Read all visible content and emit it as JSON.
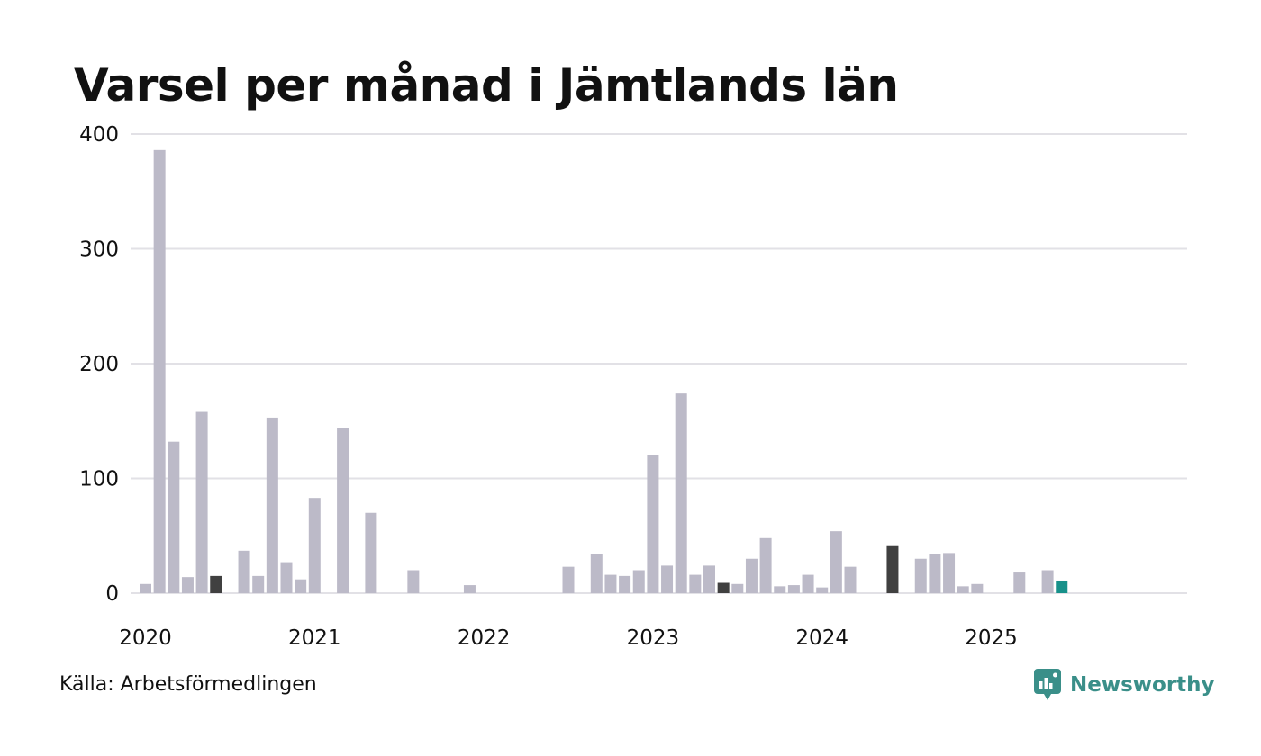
{
  "colors": {
    "bar": "#bcbac8",
    "highlight": "#404040",
    "latest": "#17918a",
    "grid": "#e2e1e6",
    "brand": "#3a8f89"
  },
  "footer": {
    "source": "Källa: Arbetsförmedlingen",
    "brand": "Newsworthy",
    "brand_icon": "newsworthy-logo-icon"
  },
  "chart_data": {
    "type": "bar",
    "title": "Varsel per månad i Jämtlands län",
    "xlabel": "",
    "ylabel": "",
    "ylim": [
      0,
      400
    ],
    "yticks": [
      0,
      100,
      200,
      300,
      400
    ],
    "xtick_labels": [
      "2020",
      "2021",
      "2022",
      "2023",
      "2024",
      "2025"
    ],
    "grid": true,
    "legend": "none",
    "categories": [
      "2020-01",
      "2020-02",
      "2020-03",
      "2020-04",
      "2020-05",
      "2020-06",
      "2020-07",
      "2020-08",
      "2020-09",
      "2020-10",
      "2020-11",
      "2020-12",
      "2021-01",
      "2021-02",
      "2021-03",
      "2021-04",
      "2021-05",
      "2021-06",
      "2021-07",
      "2021-08",
      "2021-09",
      "2021-10",
      "2021-11",
      "2021-12",
      "2022-01",
      "2022-02",
      "2022-03",
      "2022-04",
      "2022-05",
      "2022-06",
      "2022-07",
      "2022-08",
      "2022-09",
      "2022-10",
      "2022-11",
      "2022-12",
      "2023-01",
      "2023-02",
      "2023-03",
      "2023-04",
      "2023-05",
      "2023-06",
      "2023-07",
      "2023-08",
      "2023-09",
      "2023-10",
      "2023-11",
      "2023-12",
      "2024-01",
      "2024-02",
      "2024-03",
      "2024-04",
      "2024-05",
      "2024-06",
      "2024-07",
      "2024-08",
      "2024-09",
      "2024-10",
      "2024-11",
      "2024-12",
      "2025-01",
      "2025-02",
      "2025-03",
      "2025-04",
      "2025-05",
      "2025-06",
      "2025-07"
    ],
    "values": [
      8,
      386,
      132,
      14,
      158,
      15,
      0,
      37,
      15,
      153,
      27,
      12,
      83,
      0,
      144,
      0,
      70,
      0,
      0,
      20,
      0,
      0,
      0,
      7,
      0,
      0,
      0,
      0,
      0,
      0,
      23,
      0,
      34,
      16,
      15,
      20,
      120,
      24,
      174,
      16,
      24,
      9,
      8,
      30,
      48,
      6,
      7,
      16,
      5,
      54,
      23,
      0,
      0,
      41,
      0,
      30,
      34,
      35,
      6,
      8,
      0,
      0,
      18,
      0,
      20,
      11,
      0
    ],
    "highlight_categories": [
      "2020-06",
      "2023-06",
      "2024-06"
    ],
    "latest_category": "2025-06"
  }
}
